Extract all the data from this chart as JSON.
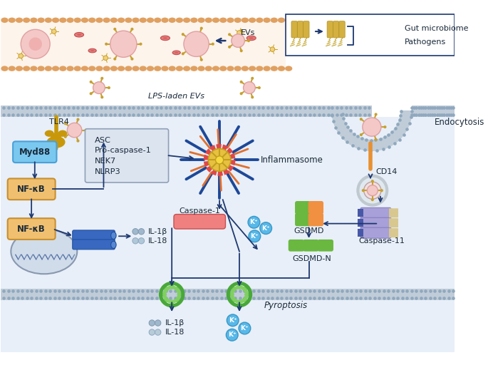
{
  "vessel_bg": "#fdf4ec",
  "vessel_border": "#dba86a",
  "cell_bg": "#e8eff8",
  "white_bg": "#ffffff",
  "membrane_fill": "#c0ccd8",
  "membrane_dot": "#8fa8be",
  "arrow_col": "#1e3870",
  "text_col": "#1a2a3a",
  "myd88_fill": "#7ac8f0",
  "myd88_edge": "#4aa0d8",
  "nfkb_fill": "#f0c070",
  "nfkb_edge": "#c89030",
  "asc_fill": "#dce4f0",
  "asc_edge": "#90a0b8",
  "tlr4_col": "#c8980a",
  "ev_fill": "#f5c8c8",
  "ev_edge": "#dea0a0",
  "ev_spike": "#c8a030",
  "rbc_fill": "#e87878",
  "rbc_edge": "#c05050",
  "infl_center": "#e8c040",
  "infl_ring": "#e04848",
  "infl_blue": "#1e4898",
  "infl_orange": "#e07030",
  "casp1_fill": "#f08080",
  "casp1_edge": "#c85050",
  "blue_rect": "#3868c0",
  "il_dot": "#8ab0cc",
  "kplus_fill": "#58b8e8",
  "kplus_edge": "#3898c8",
  "gsdmd_green": "#6ab840",
  "gsdmd_orange": "#f09040",
  "casp11_lavender": "#a8a0d8",
  "casp11_blue": "#4858a8",
  "casp11_tan": "#d8c890",
  "pore_green": "#48a838",
  "nucleus_fill": "#d0dcea",
  "nucleus_edge": "#8898b0",
  "endosome_outer": "#c0c8d0",
  "endosome_fill": "#e0e8f0",
  "cd14_col": "#e89030",
  "info_edge": "#1e3870",
  "bracket_col": "#1e3870",
  "labels": {
    "EVs": "EVs",
    "LPS_laden": "LPS-laden EVs",
    "gut_microbiome": "Gut microbiome",
    "pathogens": "Pathogens",
    "TLR4": "TLR4",
    "Myd88": "Myd88",
    "NFkB": "NF-κB",
    "ASC": "ASC",
    "pro_caspase": "Pro-caspase-1",
    "NEK7": "NEK7",
    "NLRP3": "NLRP3",
    "Inflammasome": "Inflammasome",
    "Caspase1": "Caspase-1",
    "IL1b": "IL-1β",
    "IL18": "IL-18",
    "Kplus": "K⁺",
    "GSDMD": "GSDMD",
    "GSDMD_N": "GSDMD-N",
    "Caspase11": "Caspase-11",
    "CD14": "CD14",
    "Endocytosis": "Endocytosis",
    "Pyroptosis": "Pyroptosis"
  }
}
